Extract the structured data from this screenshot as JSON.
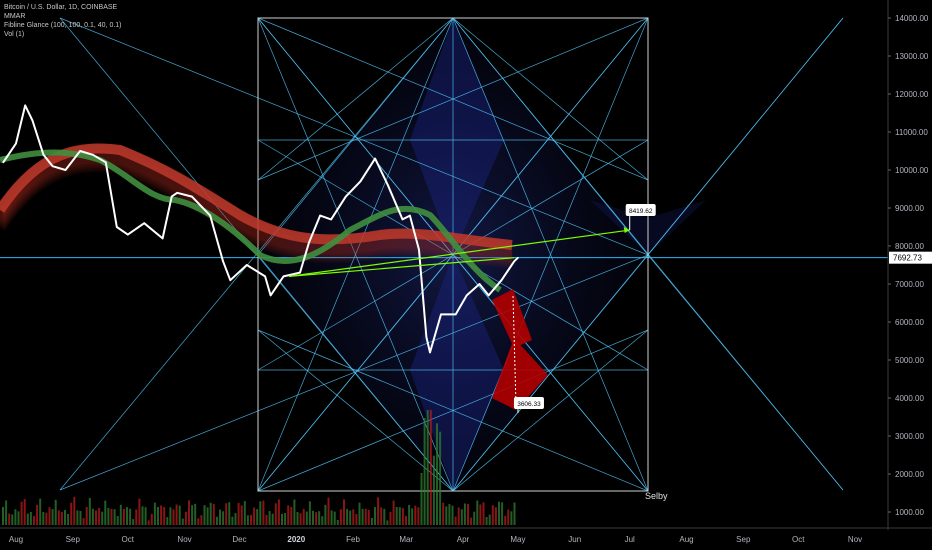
{
  "legend": {
    "symbol_line": "Bitcoin / U.S. Dollar, 1D, COINBASE",
    "indicator_1": "MMAR",
    "indicator_2": "Fibline Glance (100, 100, 0.1, 40, 0.1)",
    "indicator_3": "Vol (1)"
  },
  "price_axis": {
    "ticks": [
      "14000.00",
      "13000.00",
      "12000.00",
      "11000.00",
      "10000.00",
      "9000.00",
      "8000.00",
      "7000.00",
      "6000.00",
      "5000.00",
      "4000.00",
      "3000.00",
      "2000.00",
      "1000.00"
    ],
    "current_price_label": "7692.73"
  },
  "time_axis": {
    "labels": [
      "Aug",
      "Sep",
      "Oct",
      "Nov",
      "Dec",
      "2020",
      "Feb",
      "Mar",
      "Apr",
      "May",
      "Jun",
      "Jul",
      "Aug",
      "Sep",
      "Oct",
      "Nov"
    ]
  },
  "annotations": {
    "target_label": "8419.62",
    "low_label": "3606.33",
    "author_label": "Selby"
  },
  "colors": {
    "background": "#000000",
    "price_line": "#ffffff",
    "fib_lines": "#4fc3f7",
    "box_lines": "#cfcfcf",
    "ma_red": "#c0392b",
    "ma_green": "#3f8f3f",
    "projection_line": "#7cfc00",
    "red_zone": "#b30000",
    "diamond_blue": "#1a237e"
  },
  "chart_data": {
    "type": "line",
    "title": "Bitcoin / U.S. Dollar, 1D, COINBASE",
    "xlabel": "",
    "ylabel": "",
    "ylim": [
      700,
      14300
    ],
    "x_ticks": [
      "Aug",
      "Sep",
      "Oct",
      "Nov",
      "Dec",
      "2020",
      "Feb",
      "Mar",
      "Apr",
      "May",
      "Jun",
      "Jul",
      "Aug",
      "Sep",
      "Oct",
      "Nov"
    ],
    "series": [
      {
        "name": "Bitcoin / U.S. Dollar",
        "x": [
          "2019-07-25",
          "2019-08-01",
          "2019-08-06",
          "2019-08-10",
          "2019-08-16",
          "2019-08-21",
          "2019-08-28",
          "2019-09-05",
          "2019-09-12",
          "2019-09-19",
          "2019-09-25",
          "2019-10-01",
          "2019-10-10",
          "2019-10-20",
          "2019-10-25",
          "2019-10-28",
          "2019-11-05",
          "2019-11-15",
          "2019-11-22",
          "2019-11-26",
          "2019-12-05",
          "2019-12-15",
          "2019-12-18",
          "2019-12-25",
          "2020-01-03",
          "2020-01-08",
          "2020-01-14",
          "2020-01-20",
          "2020-01-28",
          "2020-02-05",
          "2020-02-13",
          "2020-02-20",
          "2020-02-28",
          "2020-03-03",
          "2020-03-08",
          "2020-03-12",
          "2020-03-14",
          "2020-03-20",
          "2020-03-28",
          "2020-04-03",
          "2020-04-10",
          "2020-04-15",
          "2020-04-22",
          "2020-04-29",
          "2020-05-01"
        ],
        "values": [
          10200,
          10700,
          11700,
          11300,
          10400,
          10100,
          10000,
          10500,
          10400,
          10200,
          8500,
          8300,
          8600,
          8200,
          9300,
          9400,
          9300,
          8800,
          7600,
          7100,
          7500,
          7200,
          6700,
          7200,
          7300,
          8100,
          8800,
          8700,
          9300,
          9700,
          10300,
          9600,
          8700,
          8800,
          7900,
          5600,
          5200,
          6200,
          6200,
          6700,
          7000,
          6700,
          7100,
          7600,
          7692
        ]
      }
    ],
    "annotations": [
      {
        "text": "8419.62",
        "x": "2020-07-01",
        "y": 8419.62
      },
      {
        "text": "3606.33",
        "x": "2020-05-01",
        "y": 3606.33
      },
      {
        "text": "Selby",
        "x": "2020-07-05",
        "y": 1500
      }
    ]
  }
}
